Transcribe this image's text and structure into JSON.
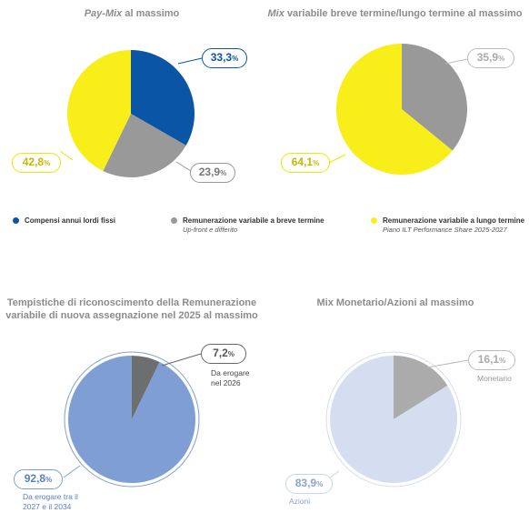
{
  "colors": {
    "blue": "#0a55a5",
    "grey": "#999999",
    "yellow": "#f8ee1a",
    "light_blue": "#7f9fd4",
    "dark_grey": "#6d6e70",
    "pale_blue": "#d4def0",
    "mid_grey": "#ababab"
  },
  "chart_data": [
    {
      "type": "pie",
      "title_italic": "Pay-Mix",
      "title_rest": " al massimo",
      "slices": [
        {
          "label": "Compensi annui lordi fissi",
          "value": 33.3,
          "display": "33,3",
          "color": "blue"
        },
        {
          "label": "Remunerazione variabile a breve termine",
          "value": 23.9,
          "display": "23,9",
          "color": "grey"
        },
        {
          "label": "Remunerazione variabile a lungo termine",
          "value": 42.8,
          "display": "42,8",
          "color": "yellow"
        }
      ]
    },
    {
      "type": "pie",
      "title_italic": "Mix",
      "title_rest": " variabile breve termine/lungo termine al massimo",
      "slices": [
        {
          "label": "Remunerazione variabile a breve termine",
          "value": 35.9,
          "display": "35,9",
          "color": "grey"
        },
        {
          "label": "Remunerazione variabile a lungo termine",
          "value": 64.1,
          "display": "64,1",
          "color": "yellow"
        }
      ]
    },
    {
      "type": "pie",
      "title_line1": "Tempistiche di riconoscimento della Remunerazione",
      "title_line2": "variabile di nuova assegnazione nel 2025 al massimo",
      "slices": [
        {
          "label": "Da erogare nel 2026",
          "value": 7.2,
          "display": "7,2",
          "color": "dark_grey"
        },
        {
          "label": "Da erogare tra il 2027 e il 2034",
          "value": 92.8,
          "display": "92,8",
          "color": "light_blue"
        }
      ]
    },
    {
      "type": "pie",
      "title": "Mix Monetario/Azioni al massimo",
      "slices": [
        {
          "label": "Monetario",
          "value": 16.1,
          "display": "16,1",
          "color": "mid_grey"
        },
        {
          "label": "Azioni",
          "value": 83.9,
          "display": "83,9",
          "color": "pale_blue"
        }
      ]
    }
  ],
  "legend": [
    {
      "label": "Compensi annui lordi fissi",
      "sub": "",
      "color": "blue"
    },
    {
      "label": "Remunerazione variabile a breve termine",
      "sub": "Up-front e differito",
      "color": "grey"
    },
    {
      "label": "Remunerazione variabile a lungo termine",
      "sub": "Piano ILT Performance Share 2025-2027",
      "color": "yellow"
    }
  ],
  "notes": {
    "c3_small_1": "Da erogare",
    "c3_small_2": "nel 2026",
    "c3_big_1": "Da erogare tra il",
    "c3_big_2": "2027 e il 2034",
    "c4_small": "Monetario",
    "c4_big": "Azioni"
  },
  "pct_sign": "%"
}
